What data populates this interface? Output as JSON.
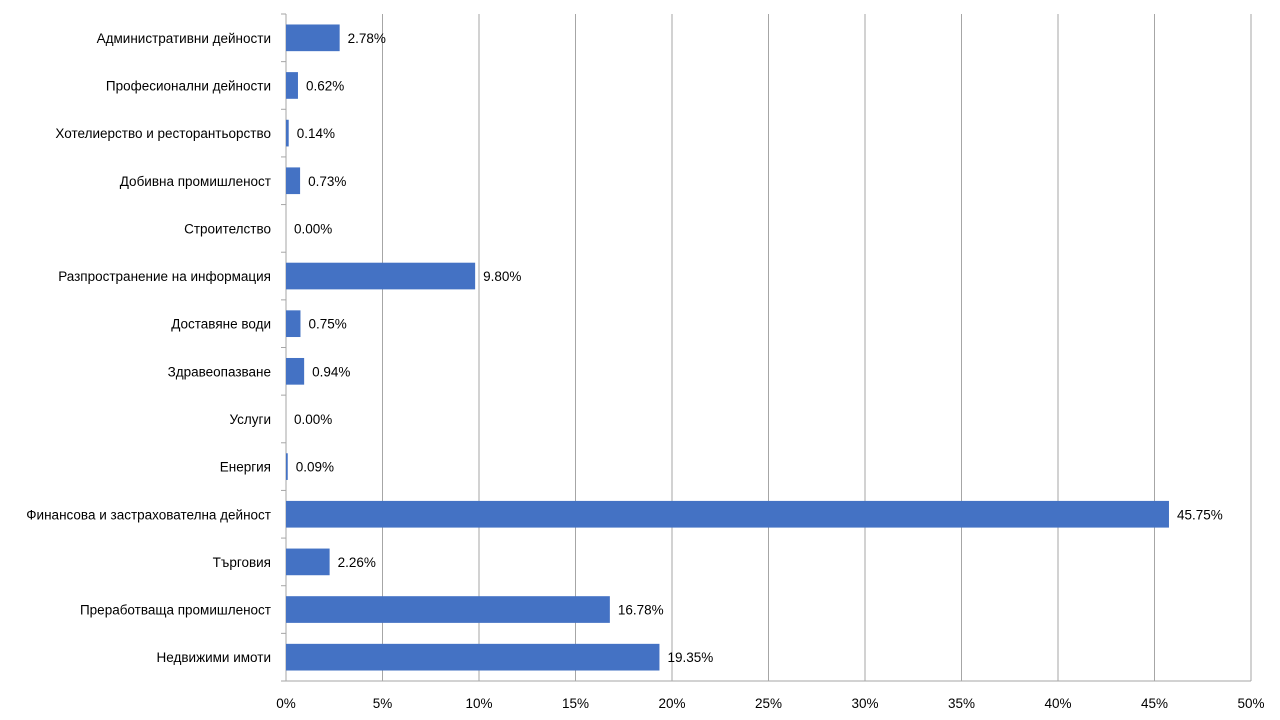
{
  "chart_data": {
    "type": "bar",
    "orientation": "horizontal",
    "categories": [
      "Административни дейности",
      "Професионални дейности",
      "Хотелиерство и ресторантьорство",
      "Добивна промишленост",
      "Строителство",
      "Разпространение на информация",
      "Доставяне води",
      "Здравеопазване",
      "Услуги",
      "Енергия",
      "Финансова и застрахователна дейност",
      "Търговия",
      "Преработваща промишленост",
      "Недвижими имоти"
    ],
    "values": [
      2.78,
      0.62,
      0.14,
      0.73,
      0.0,
      9.8,
      0.75,
      0.94,
      0.0,
      0.09,
      45.75,
      2.26,
      16.78,
      19.35
    ],
    "data_labels": [
      "2.78%",
      "0.62%",
      "0.14%",
      "0.73%",
      "0.00%",
      "9.80%",
      "0.75%",
      "0.94%",
      "0.00%",
      "0.09%",
      "45.75%",
      "2.26%",
      "16.78%",
      "19.35%"
    ],
    "xticks": [
      "0%",
      "5%",
      "10%",
      "15%",
      "20%",
      "25%",
      "30%",
      "35%",
      "40%",
      "45%",
      "50%"
    ],
    "xlim": [
      0,
      50
    ],
    "title": "",
    "xlabel": "",
    "ylabel": "",
    "grid": "vertical",
    "legend": "none",
    "bar_color": "#4472C4",
    "grid_color": "#A6A6A6"
  }
}
